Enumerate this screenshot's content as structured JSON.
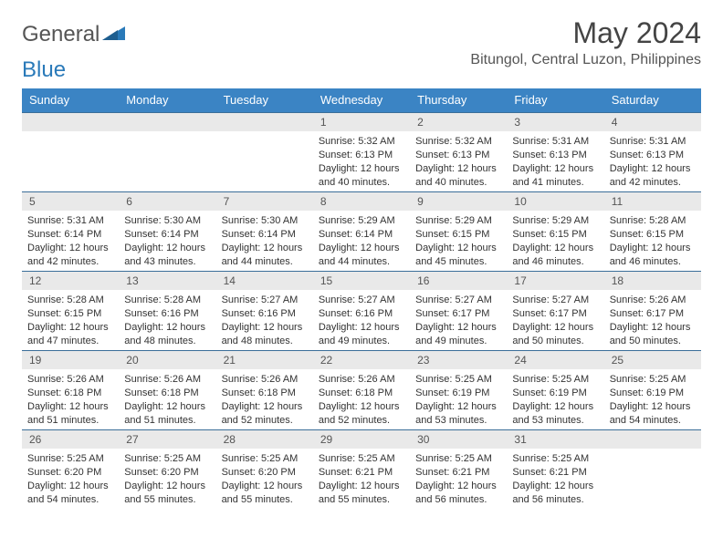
{
  "header": {
    "logo_text_1": "General",
    "logo_text_2": "Blue",
    "month_title": "May 2024",
    "location": "Bitungol, Central Luzon, Philippines"
  },
  "colors": {
    "header_bg": "#3b84c4",
    "header_text": "#ffffff",
    "daynum_bg": "#e9e9e9",
    "rule": "#3b6e99",
    "logo_blue": "#2a7ab9"
  },
  "weekdays": [
    "Sunday",
    "Monday",
    "Tuesday",
    "Wednesday",
    "Thursday",
    "Friday",
    "Saturday"
  ],
  "weeks": [
    {
      "nums": [
        "",
        "",
        "",
        "1",
        "2",
        "3",
        "4"
      ],
      "cells": [
        {
          "empty": true
        },
        {
          "empty": true
        },
        {
          "empty": true
        },
        {
          "sunrise": "Sunrise: 5:32 AM",
          "sunset": "Sunset: 6:13 PM",
          "d1": "Daylight: 12 hours",
          "d2": "and 40 minutes."
        },
        {
          "sunrise": "Sunrise: 5:32 AM",
          "sunset": "Sunset: 6:13 PM",
          "d1": "Daylight: 12 hours",
          "d2": "and 40 minutes."
        },
        {
          "sunrise": "Sunrise: 5:31 AM",
          "sunset": "Sunset: 6:13 PM",
          "d1": "Daylight: 12 hours",
          "d2": "and 41 minutes."
        },
        {
          "sunrise": "Sunrise: 5:31 AM",
          "sunset": "Sunset: 6:13 PM",
          "d1": "Daylight: 12 hours",
          "d2": "and 42 minutes."
        }
      ]
    },
    {
      "nums": [
        "5",
        "6",
        "7",
        "8",
        "9",
        "10",
        "11"
      ],
      "cells": [
        {
          "sunrise": "Sunrise: 5:31 AM",
          "sunset": "Sunset: 6:14 PM",
          "d1": "Daylight: 12 hours",
          "d2": "and 42 minutes."
        },
        {
          "sunrise": "Sunrise: 5:30 AM",
          "sunset": "Sunset: 6:14 PM",
          "d1": "Daylight: 12 hours",
          "d2": "and 43 minutes."
        },
        {
          "sunrise": "Sunrise: 5:30 AM",
          "sunset": "Sunset: 6:14 PM",
          "d1": "Daylight: 12 hours",
          "d2": "and 44 minutes."
        },
        {
          "sunrise": "Sunrise: 5:29 AM",
          "sunset": "Sunset: 6:14 PM",
          "d1": "Daylight: 12 hours",
          "d2": "and 44 minutes."
        },
        {
          "sunrise": "Sunrise: 5:29 AM",
          "sunset": "Sunset: 6:15 PM",
          "d1": "Daylight: 12 hours",
          "d2": "and 45 minutes."
        },
        {
          "sunrise": "Sunrise: 5:29 AM",
          "sunset": "Sunset: 6:15 PM",
          "d1": "Daylight: 12 hours",
          "d2": "and 46 minutes."
        },
        {
          "sunrise": "Sunrise: 5:28 AM",
          "sunset": "Sunset: 6:15 PM",
          "d1": "Daylight: 12 hours",
          "d2": "and 46 minutes."
        }
      ]
    },
    {
      "nums": [
        "12",
        "13",
        "14",
        "15",
        "16",
        "17",
        "18"
      ],
      "cells": [
        {
          "sunrise": "Sunrise: 5:28 AM",
          "sunset": "Sunset: 6:15 PM",
          "d1": "Daylight: 12 hours",
          "d2": "and 47 minutes."
        },
        {
          "sunrise": "Sunrise: 5:28 AM",
          "sunset": "Sunset: 6:16 PM",
          "d1": "Daylight: 12 hours",
          "d2": "and 48 minutes."
        },
        {
          "sunrise": "Sunrise: 5:27 AM",
          "sunset": "Sunset: 6:16 PM",
          "d1": "Daylight: 12 hours",
          "d2": "and 48 minutes."
        },
        {
          "sunrise": "Sunrise: 5:27 AM",
          "sunset": "Sunset: 6:16 PM",
          "d1": "Daylight: 12 hours",
          "d2": "and 49 minutes."
        },
        {
          "sunrise": "Sunrise: 5:27 AM",
          "sunset": "Sunset: 6:17 PM",
          "d1": "Daylight: 12 hours",
          "d2": "and 49 minutes."
        },
        {
          "sunrise": "Sunrise: 5:27 AM",
          "sunset": "Sunset: 6:17 PM",
          "d1": "Daylight: 12 hours",
          "d2": "and 50 minutes."
        },
        {
          "sunrise": "Sunrise: 5:26 AM",
          "sunset": "Sunset: 6:17 PM",
          "d1": "Daylight: 12 hours",
          "d2": "and 50 minutes."
        }
      ]
    },
    {
      "nums": [
        "19",
        "20",
        "21",
        "22",
        "23",
        "24",
        "25"
      ],
      "cells": [
        {
          "sunrise": "Sunrise: 5:26 AM",
          "sunset": "Sunset: 6:18 PM",
          "d1": "Daylight: 12 hours",
          "d2": "and 51 minutes."
        },
        {
          "sunrise": "Sunrise: 5:26 AM",
          "sunset": "Sunset: 6:18 PM",
          "d1": "Daylight: 12 hours",
          "d2": "and 51 minutes."
        },
        {
          "sunrise": "Sunrise: 5:26 AM",
          "sunset": "Sunset: 6:18 PM",
          "d1": "Daylight: 12 hours",
          "d2": "and 52 minutes."
        },
        {
          "sunrise": "Sunrise: 5:26 AM",
          "sunset": "Sunset: 6:18 PM",
          "d1": "Daylight: 12 hours",
          "d2": "and 52 minutes."
        },
        {
          "sunrise": "Sunrise: 5:25 AM",
          "sunset": "Sunset: 6:19 PM",
          "d1": "Daylight: 12 hours",
          "d2": "and 53 minutes."
        },
        {
          "sunrise": "Sunrise: 5:25 AM",
          "sunset": "Sunset: 6:19 PM",
          "d1": "Daylight: 12 hours",
          "d2": "and 53 minutes."
        },
        {
          "sunrise": "Sunrise: 5:25 AM",
          "sunset": "Sunset: 6:19 PM",
          "d1": "Daylight: 12 hours",
          "d2": "and 54 minutes."
        }
      ]
    },
    {
      "nums": [
        "26",
        "27",
        "28",
        "29",
        "30",
        "31",
        ""
      ],
      "cells": [
        {
          "sunrise": "Sunrise: 5:25 AM",
          "sunset": "Sunset: 6:20 PM",
          "d1": "Daylight: 12 hours",
          "d2": "and 54 minutes."
        },
        {
          "sunrise": "Sunrise: 5:25 AM",
          "sunset": "Sunset: 6:20 PM",
          "d1": "Daylight: 12 hours",
          "d2": "and 55 minutes."
        },
        {
          "sunrise": "Sunrise: 5:25 AM",
          "sunset": "Sunset: 6:20 PM",
          "d1": "Daylight: 12 hours",
          "d2": "and 55 minutes."
        },
        {
          "sunrise": "Sunrise: 5:25 AM",
          "sunset": "Sunset: 6:21 PM",
          "d1": "Daylight: 12 hours",
          "d2": "and 55 minutes."
        },
        {
          "sunrise": "Sunrise: 5:25 AM",
          "sunset": "Sunset: 6:21 PM",
          "d1": "Daylight: 12 hours",
          "d2": "and 56 minutes."
        },
        {
          "sunrise": "Sunrise: 5:25 AM",
          "sunset": "Sunset: 6:21 PM",
          "d1": "Daylight: 12 hours",
          "d2": "and 56 minutes."
        },
        {
          "empty": true
        }
      ]
    }
  ]
}
